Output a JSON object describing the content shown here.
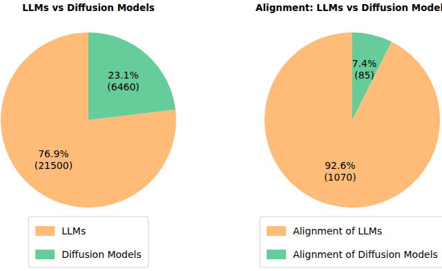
{
  "chart_data": [
    {
      "type": "pie",
      "title": "LLMs vs Diffusion Models",
      "categories": [
        "LLMs",
        "Diffusion Models"
      ],
      "values": [
        76.9,
        23.1
      ],
      "value_labels": [
        "76.9%",
        "23.1%"
      ],
      "counts": [
        21500,
        6460
      ],
      "count_labels": [
        "(21500)",
        "(6460)"
      ],
      "colors": [
        "#ffbb78",
        "#66cc99"
      ],
      "legend": "lower center"
    },
    {
      "type": "pie",
      "title": "Alignment: LLMs vs Diffusion Models",
      "categories": [
        "Alignment of LLMs",
        "Alignment of Diffusion Models"
      ],
      "values": [
        92.6,
        7.4
      ],
      "value_labels": [
        "92.6%",
        "7.4%"
      ],
      "counts": [
        1070,
        85
      ],
      "count_labels": [
        "(1070)",
        "(85)"
      ],
      "colors": [
        "#ffbb78",
        "#66cc99"
      ],
      "legend": "lower center"
    }
  ]
}
